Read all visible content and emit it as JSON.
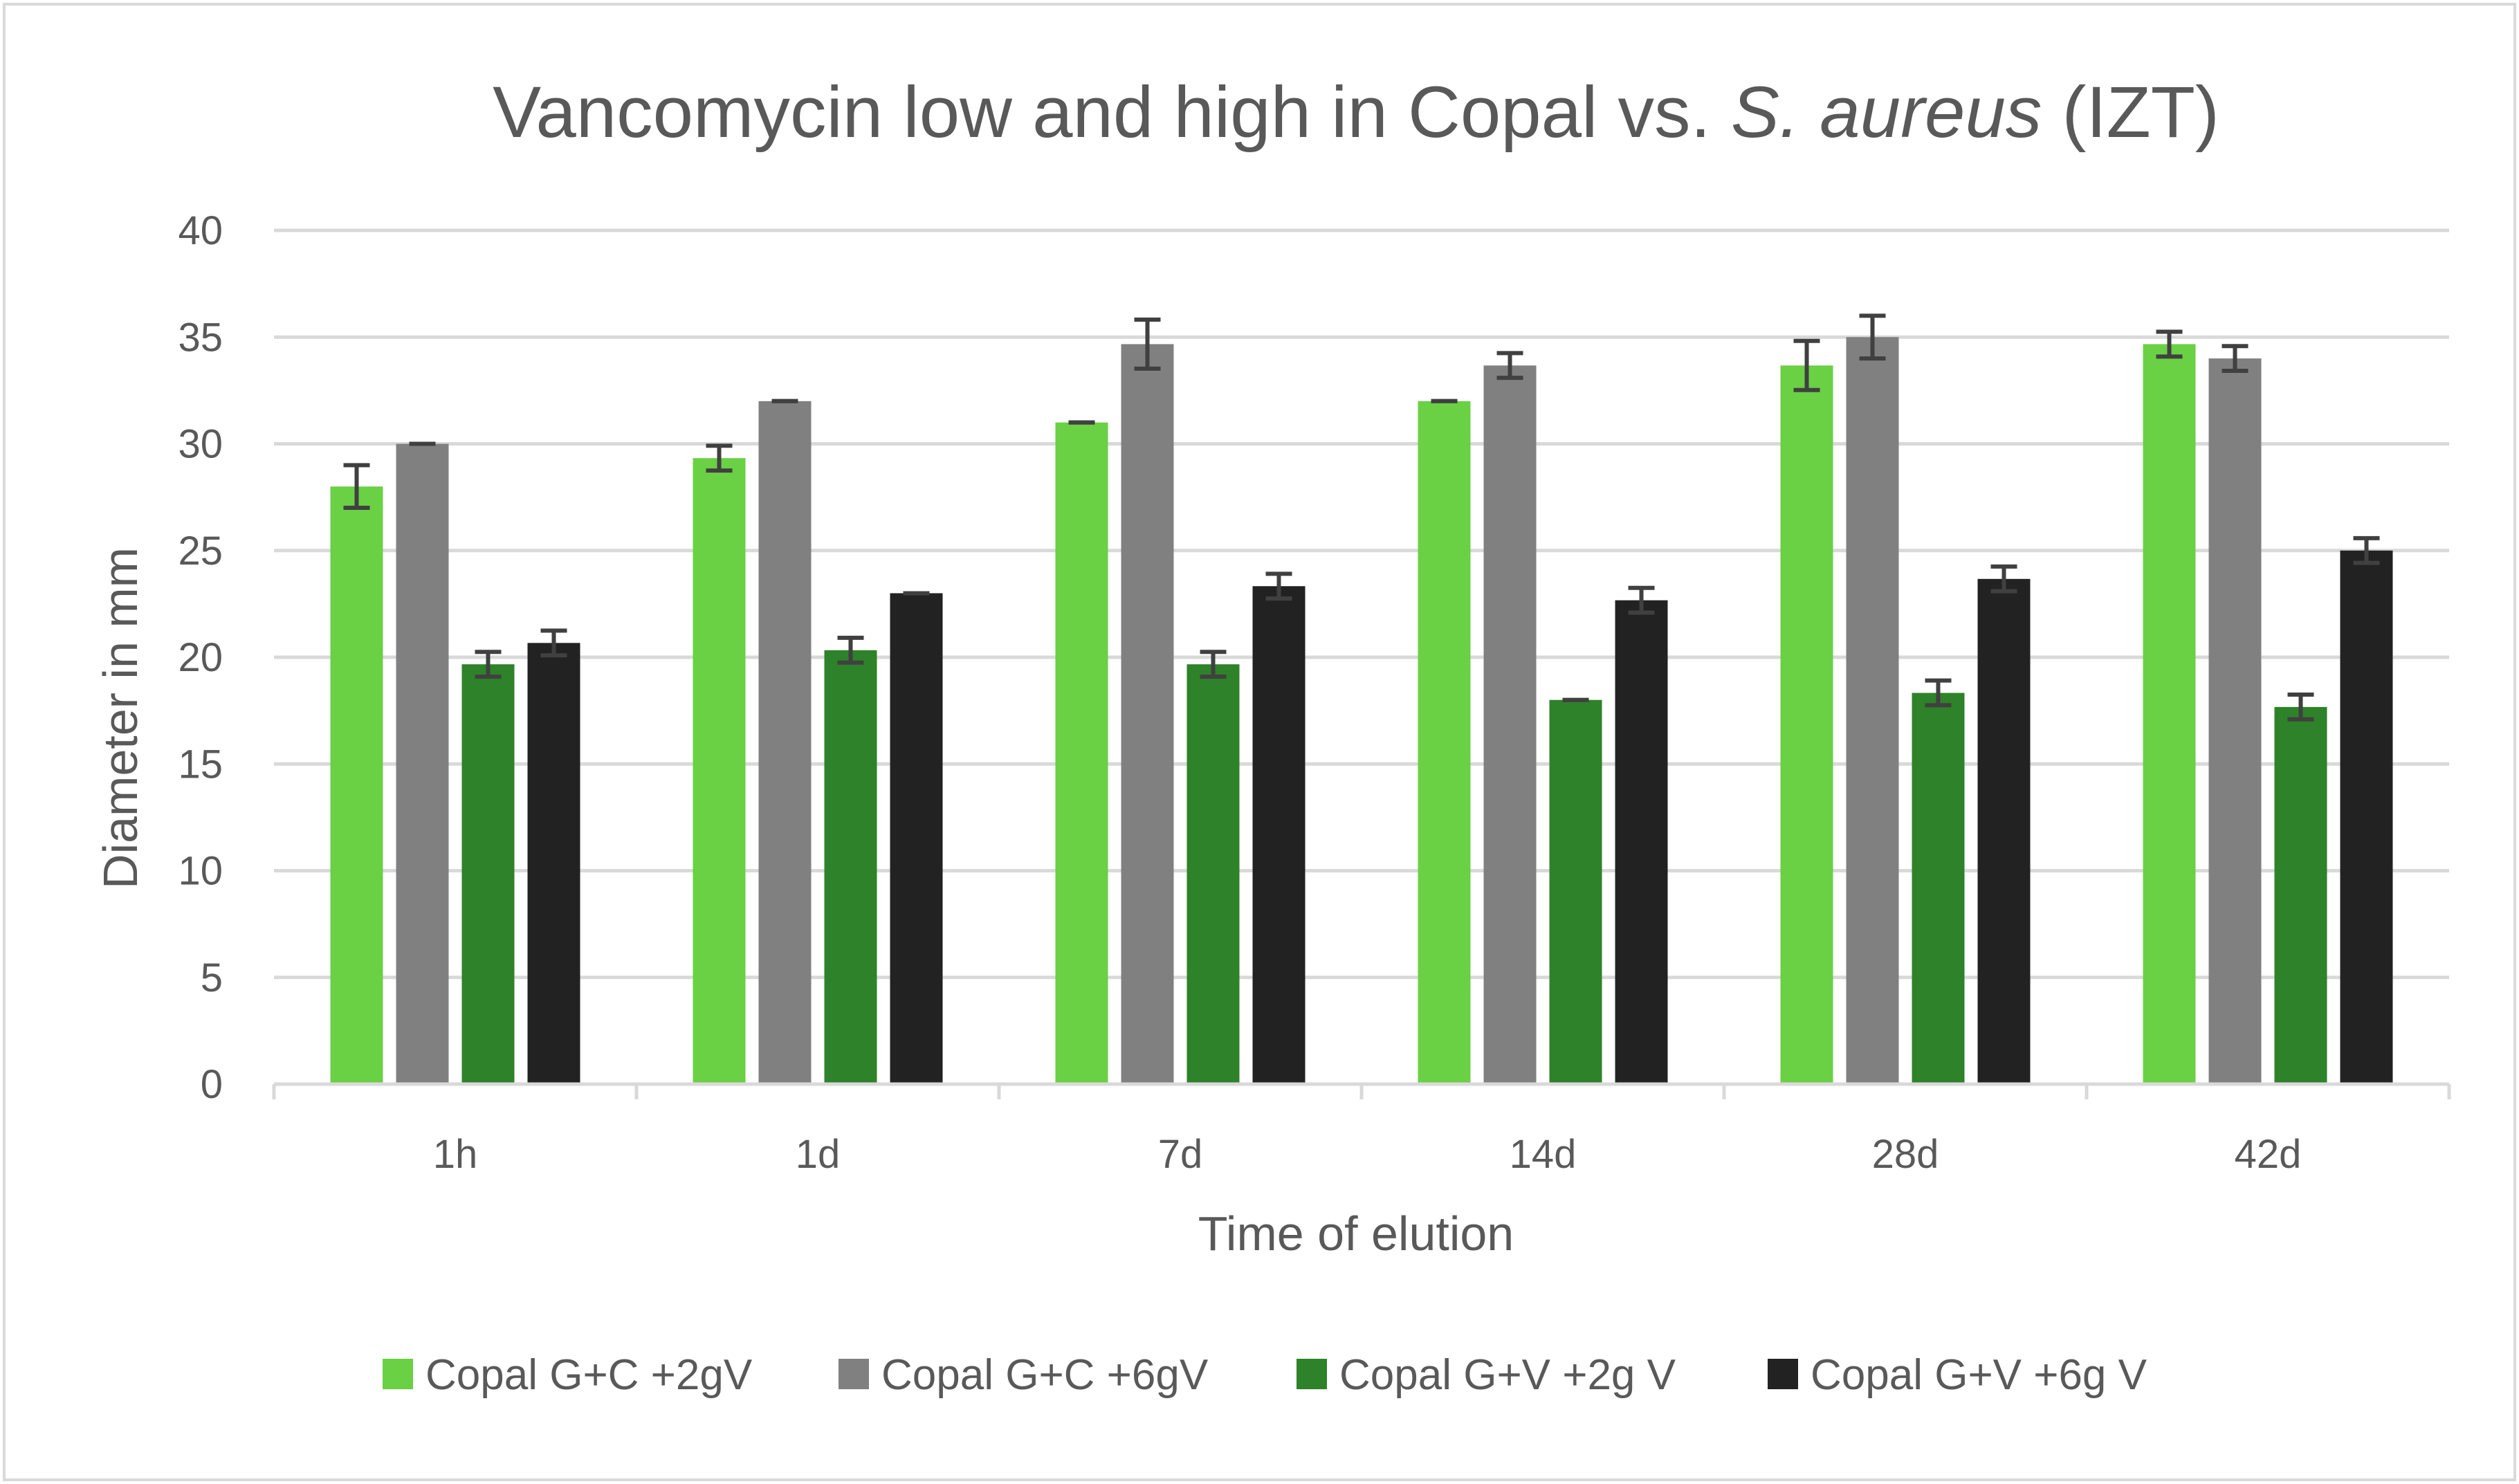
{
  "chart_data": {
    "type": "bar",
    "title": {
      "prefix": "Vancomycin low and high in Copal vs. ",
      "italic": "S. aureus",
      "suffix": " (IZT)"
    },
    "xlabel": "Time of elution",
    "ylabel": "Diameter in mm",
    "ylim": [
      0,
      40
    ],
    "yticks": [
      0,
      5,
      10,
      15,
      20,
      25,
      30,
      35,
      40
    ],
    "grid": true,
    "legend_position": "bottom",
    "categories": [
      "1h",
      "1d",
      "7d",
      "14d",
      "28d",
      "42d"
    ],
    "series": [
      {
        "name": "Copal G+C +2gV",
        "color": "#6ad044",
        "values": [
          28.0,
          29.33,
          31.0,
          32.0,
          33.67,
          34.67
        ],
        "errors": [
          1.0,
          0.58,
          0.0,
          0.0,
          1.15,
          0.58
        ]
      },
      {
        "name": "Copal G+C +6gV",
        "color": "#808080",
        "values": [
          30.0,
          32.0,
          34.67,
          33.67,
          35.0,
          34.0
        ],
        "errors": [
          0.0,
          0.0,
          1.15,
          0.58,
          1.0,
          0.58
        ]
      },
      {
        "name": "Copal G+V +2g V",
        "color": "#2e8229",
        "values": [
          19.67,
          20.33,
          19.67,
          18.0,
          18.33,
          17.67
        ],
        "errors": [
          0.58,
          0.58,
          0.58,
          0.0,
          0.58,
          0.58
        ]
      },
      {
        "name": "Copal G+V +6g V",
        "color": "#222222",
        "values": [
          20.67,
          23.0,
          23.33,
          22.67,
          23.67,
          25.0
        ],
        "errors": [
          0.58,
          0.0,
          0.58,
          0.58,
          0.58,
          0.58
        ]
      }
    ],
    "error_bar_color": "#404040",
    "gridline_color": "#d9d9d9",
    "axis_color": "#d9d9d9"
  }
}
